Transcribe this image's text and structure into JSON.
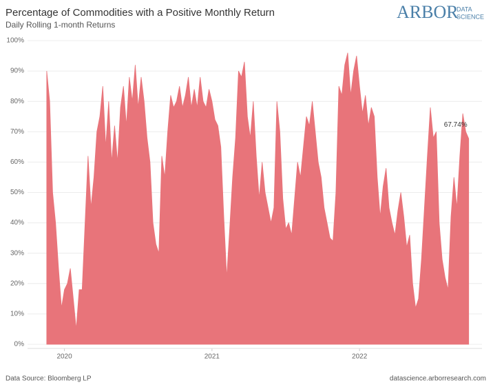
{
  "chart_data": {
    "type": "area",
    "title": "Percentage of Commodities with a Positive Monthly Return",
    "subtitle": "Daily Rolling 1-month Returns",
    "source": "Data Source: Bloomberg LP",
    "website": "datascience.arborresearch.com",
    "logo": {
      "name": "ARBOR",
      "line1": "DATA",
      "line2": "SCIENCE"
    },
    "annotation": "67.74%",
    "color": "#e8747a",
    "grid": true,
    "x": [
      2019.88,
      2019.9,
      2019.92,
      2019.94,
      2019.96,
      2019.98,
      2020.0,
      2020.02,
      2020.04,
      2020.06,
      2020.08,
      2020.1,
      2020.12,
      2020.14,
      2020.16,
      2020.18,
      2020.2,
      2020.22,
      2020.24,
      2020.26,
      2020.28,
      2020.3,
      2020.32,
      2020.34,
      2020.36,
      2020.38,
      2020.4,
      2020.42,
      2020.44,
      2020.46,
      2020.48,
      2020.5,
      2020.52,
      2020.54,
      2020.56,
      2020.58,
      2020.6,
      2020.62,
      2020.64,
      2020.66,
      2020.68,
      2020.7,
      2020.72,
      2020.74,
      2020.76,
      2020.78,
      2020.8,
      2020.82,
      2020.84,
      2020.86,
      2020.88,
      2020.9,
      2020.92,
      2020.94,
      2020.96,
      2020.98,
      2021.0,
      2021.02,
      2021.04,
      2021.06,
      2021.08,
      2021.1,
      2021.12,
      2021.14,
      2021.16,
      2021.18,
      2021.2,
      2021.22,
      2021.24,
      2021.26,
      2021.28,
      2021.3,
      2021.32,
      2021.34,
      2021.36,
      2021.38,
      2021.4,
      2021.42,
      2021.44,
      2021.46,
      2021.48,
      2021.5,
      2021.52,
      2021.54,
      2021.56,
      2021.58,
      2021.6,
      2021.62,
      2021.64,
      2021.66,
      2021.68,
      2021.7,
      2021.72,
      2021.74,
      2021.76,
      2021.78,
      2021.8,
      2021.82,
      2021.84,
      2021.86,
      2021.88,
      2021.9,
      2021.92,
      2021.94,
      2021.96,
      2021.98,
      2022.0,
      2022.02,
      2022.04,
      2022.06,
      2022.08,
      2022.1,
      2022.12,
      2022.14,
      2022.16,
      2022.18,
      2022.2,
      2022.22,
      2022.24,
      2022.26,
      2022.28,
      2022.3,
      2022.32,
      2022.34,
      2022.36,
      2022.38,
      2022.4,
      2022.42,
      2022.44,
      2022.46,
      2022.48,
      2022.5,
      2022.52,
      2022.54,
      2022.56,
      2022.58,
      2022.6,
      2022.62,
      2022.64,
      2022.66,
      2022.68,
      2022.7,
      2022.72,
      2022.74
    ],
    "values": [
      90,
      80,
      50,
      40,
      25,
      12,
      18,
      20,
      25,
      15,
      5,
      18,
      18,
      40,
      62,
      45,
      55,
      70,
      75,
      85,
      65,
      80,
      60,
      72,
      60,
      78,
      85,
      72,
      88,
      80,
      92,
      78,
      88,
      80,
      68,
      60,
      40,
      33,
      30,
      62,
      55,
      70,
      82,
      78,
      80,
      85,
      78,
      82,
      88,
      78,
      84,
      78,
      88,
      80,
      78,
      84,
      80,
      74,
      72,
      65,
      42,
      22,
      38,
      55,
      68,
      90,
      88,
      93,
      75,
      68,
      80,
      62,
      48,
      60,
      50,
      45,
      40,
      45,
      80,
      70,
      48,
      38,
      40,
      36,
      48,
      60,
      55,
      65,
      75,
      72,
      80,
      70,
      60,
      55,
      45,
      40,
      35,
      34,
      50,
      85,
      82,
      92,
      96,
      82,
      90,
      95,
      85,
      76,
      82,
      72,
      78,
      75,
      55,
      42,
      52,
      58,
      45,
      40,
      36,
      44,
      50,
      42,
      32,
      36,
      20,
      12,
      15,
      28,
      45,
      62,
      78,
      68,
      70,
      40,
      28,
      22,
      18,
      42,
      55,
      45,
      62,
      76,
      70,
      67.74
    ],
    "xlim": [
      2019.75,
      2022.83
    ],
    "xticks": [
      2020,
      2021,
      2022
    ],
    "ylim": [
      0,
      100
    ],
    "yticks": [
      {
        "value": 0,
        "label": "0%"
      },
      {
        "value": 10,
        "label": "10%"
      },
      {
        "value": 20,
        "label": "20%"
      },
      {
        "value": 30,
        "label": "30%"
      },
      {
        "value": 40,
        "label": "40%"
      },
      {
        "value": 50,
        "label": "50%"
      },
      {
        "value": 60,
        "label": "60%"
      },
      {
        "value": 70,
        "label": "70%"
      },
      {
        "value": 80,
        "label": "80%"
      },
      {
        "value": 90,
        "label": "90%"
      },
      {
        "value": 100,
        "label": "100%"
      }
    ]
  }
}
